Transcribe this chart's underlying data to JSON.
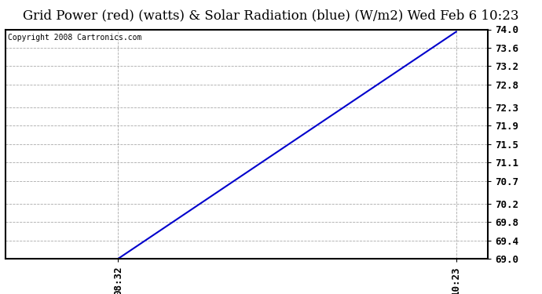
{
  "title": "Grid Power (red) (watts) & Solar Radiation (blue) (W/m2) Wed Feb 6 10:23",
  "copyright_text": "Copyright 2008 Cartronics.com",
  "x_ticks_labels": [
    "08:32",
    "10:23"
  ],
  "x_tick_positions": [
    0.25,
    1.0
  ],
  "x_min": 0.0,
  "x_max": 1.07,
  "line_x": [
    0.25,
    1.0
  ],
  "line_y": [
    69.0,
    73.95
  ],
  "y_min": 69.0,
  "y_max": 74.0,
  "y_ticks": [
    69.0,
    69.4,
    69.8,
    70.2,
    70.7,
    71.1,
    71.5,
    71.9,
    72.3,
    72.8,
    73.2,
    73.6,
    74.0
  ],
  "line_color": "#0000cc",
  "background_color": "#ffffff",
  "grid_color": "#aaaaaa",
  "title_fontsize": 12,
  "copyright_fontsize": 7,
  "tick_fontsize": 9
}
